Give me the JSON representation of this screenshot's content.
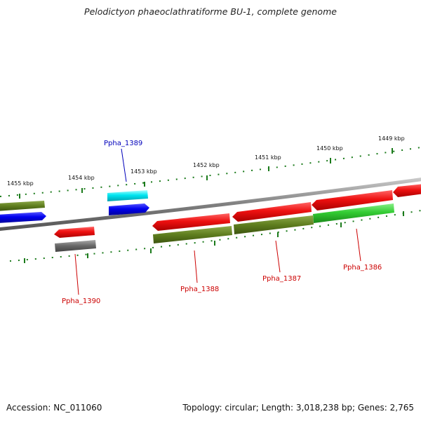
{
  "title": "Pelodictyon phaeoclathratiforme BU-1, complete genome",
  "footer": {
    "accession": "Accession: NC_011060",
    "info": "Topology: circular; Length: 3,018,238 bp; Genes: 2,765"
  },
  "ticks": [
    "1455 kbp",
    "1454 kbp",
    "1453 kbp",
    "1452 kbp",
    "1451 kbp",
    "1450 kbp",
    "1449 kbp"
  ],
  "genes": [
    {
      "name": "Ppha_1389",
      "color": "#0000bb"
    },
    {
      "name": "Ppha_1390",
      "color": "#cc0000"
    },
    {
      "name": "Ppha_1388",
      "color": "#cc0000"
    },
    {
      "name": "Ppha_1387",
      "color": "#cc0000"
    },
    {
      "name": "Ppha_1386",
      "color": "#cc0000"
    }
  ],
  "colors": {
    "red": "#ee1111",
    "blue": "#0000ee",
    "olive": "#5e7d1e",
    "green": "#33cc33",
    "cyan": "#00e5f0",
    "gray": "#666666",
    "backbone": "#808080",
    "tick": "#1a7a1a"
  }
}
